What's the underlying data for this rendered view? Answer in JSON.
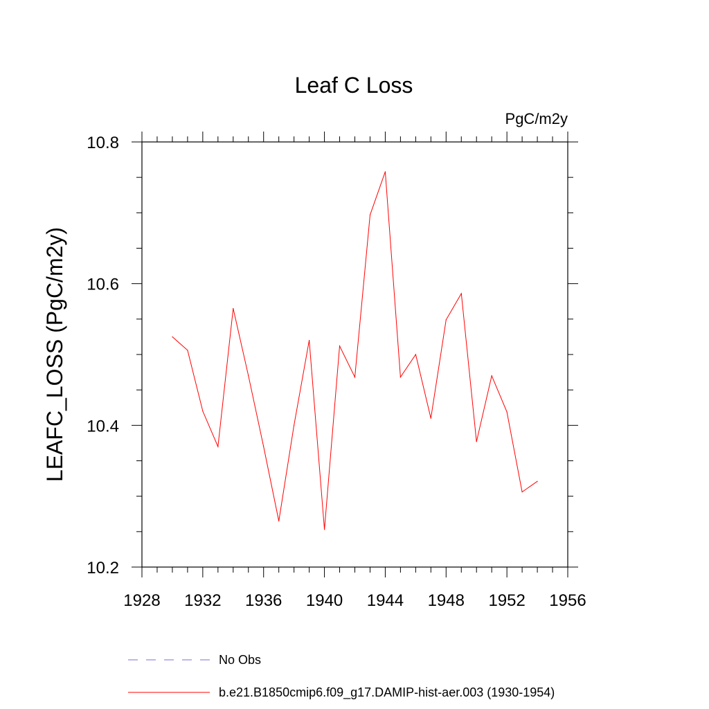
{
  "chart_data": {
    "type": "line",
    "title": "Leaf C Loss",
    "units_label": "PgC/m2y",
    "ylabel": "LEAFC_LOSS  (PgC/m2y)",
    "xlabel": "",
    "xlim": [
      1928,
      1956
    ],
    "ylim": [
      10.2,
      10.8
    ],
    "x_ticks": [
      1928,
      1932,
      1936,
      1940,
      1944,
      1948,
      1952,
      1956
    ],
    "x_tick_labels": [
      "1928",
      "1932",
      "1936",
      "1940",
      "1944",
      "1948",
      "1952",
      "1956"
    ],
    "y_ticks": [
      10.2,
      10.4,
      10.6,
      10.8
    ],
    "y_tick_labels": [
      "10.2",
      "10.4",
      "10.6",
      "10.8"
    ],
    "x_minor_step": 1,
    "y_minor_step": 0.05,
    "grid": false,
    "legend_placement": "bottom",
    "series": [
      {
        "name": "b.e21.B1850cmip6.f09_g17.DAMIP-hist-aer.003 (1930-1954)",
        "color": "#ff0000",
        "style": "solid",
        "x": [
          1930,
          1931,
          1932,
          1933,
          1934,
          1935,
          1936,
          1937,
          1938,
          1939,
          1940,
          1941,
          1942,
          1943,
          1944,
          1945,
          1946,
          1947,
          1948,
          1949,
          1950,
          1951,
          1952,
          1953,
          1954
        ],
        "values": [
          10.525,
          10.506,
          10.42,
          10.37,
          10.565,
          10.47,
          10.37,
          10.265,
          10.4,
          10.52,
          10.253,
          10.512,
          10.468,
          10.697,
          10.758,
          10.468,
          10.5,
          10.41,
          10.549,
          10.586,
          10.377,
          10.47,
          10.419,
          10.306,
          10.321
        ]
      }
    ],
    "legend": [
      {
        "label": "No Obs",
        "color": "#7b6fd8",
        "style": "dashed"
      },
      {
        "label": "b.e21.B1850cmip6.f09_g17.DAMIP-hist-aer.003 (1930-1954)",
        "color": "#ff0000",
        "style": "solid"
      }
    ]
  }
}
